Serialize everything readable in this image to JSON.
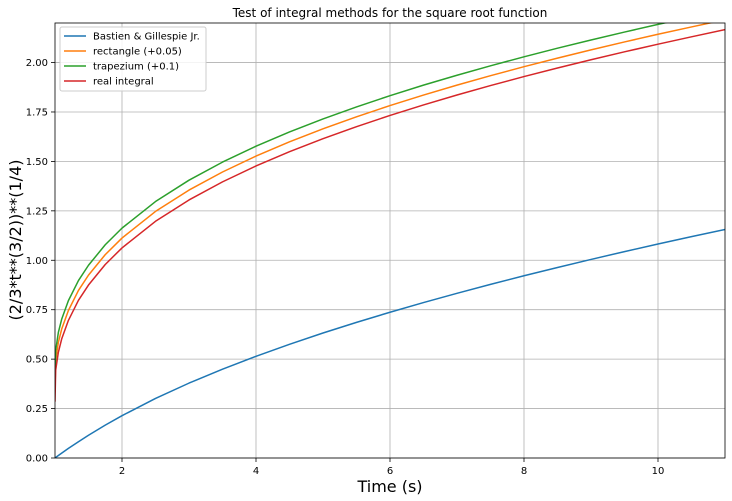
{
  "chart_data": {
    "type": "line",
    "title": "Test of integral methods for the square root function",
    "xlabel": "Time (s)",
    "ylabel": "(2/3*t**(3/2))**(1/4)",
    "xlim": [
      1,
      11
    ],
    "ylim": [
      0,
      2.2
    ],
    "xticks": [
      2,
      4,
      6,
      8,
      10
    ],
    "yticks": [
      0.0,
      0.25,
      0.5,
      0.75,
      1.0,
      1.25,
      1.5,
      1.75,
      2.0
    ],
    "xtick_labels": [
      "2",
      "4",
      "6",
      "8",
      "10"
    ],
    "ytick_labels": [
      "0.00",
      "0.25",
      "0.50",
      "0.75",
      "1.00",
      "1.25",
      "1.50",
      "1.75",
      "2.00"
    ],
    "grid": true,
    "legend_position": "top-left",
    "x": [
      1.0,
      1.01,
      1.05,
      1.1,
      1.2,
      1.35,
      1.5,
      1.75,
      2.0,
      2.5,
      3.0,
      3.5,
      4.0,
      4.5,
      5.0,
      5.5,
      6.0,
      6.5,
      7.0,
      7.5,
      8.0,
      8.5,
      9.0,
      9.5,
      10.0,
      10.5,
      11.0
    ],
    "series": [
      {
        "name": "Bastien & Gillespie Jr.",
        "color": "#1f77b4",
        "values": [
          0.0,
          0.0026,
          0.0128,
          0.0249,
          0.0486,
          0.0825,
          0.115,
          0.1662,
          0.2141,
          0.3011,
          0.3787,
          0.4494,
          0.5145,
          0.5752,
          0.6322,
          0.686,
          0.7372,
          0.7861,
          0.833,
          0.8781,
          0.9216,
          0.9636,
          1.0043,
          1.0438,
          1.0822,
          1.1195,
          1.1558
        ]
      },
      {
        "name": "rectangle (+0.05)",
        "color": "#ff7f0e",
        "values": [
          0.3371,
          0.494,
          0.5848,
          0.6523,
          0.7459,
          0.8474,
          0.9248,
          1.0285,
          1.1125,
          1.2471,
          1.355,
          1.4465,
          1.527,
          1.599,
          1.6649,
          1.7257,
          1.7824,
          1.8357,
          1.8859,
          1.9336,
          1.979,
          2.0225,
          2.0641,
          2.1042,
          2.1429,
          2.1802,
          2.2164
        ]
      },
      {
        "name": "trapezium (+0.1)",
        "color": "#2ca02c",
        "values": [
          0.3871,
          0.544,
          0.6348,
          0.7023,
          0.7959,
          0.8974,
          0.9748,
          1.0785,
          1.1625,
          1.2971,
          1.405,
          1.4965,
          1.577,
          1.649,
          1.7149,
          1.7757,
          1.8324,
          1.8857,
          1.9359,
          1.9836,
          2.029,
          2.0725,
          2.1141,
          2.1542,
          2.1929,
          2.2302,
          2.2664
        ]
      },
      {
        "name": "real integral",
        "color": "#d62728",
        "values": [
          0.2871,
          0.444,
          0.5348,
          0.6023,
          0.6959,
          0.7974,
          0.8748,
          0.9785,
          1.0625,
          1.1971,
          1.305,
          1.3965,
          1.477,
          1.549,
          1.6149,
          1.6757,
          1.7324,
          1.7857,
          1.8359,
          1.8836,
          1.929,
          1.9725,
          2.0141,
          2.0542,
          2.0929,
          2.1302,
          2.1664
        ]
      }
    ]
  }
}
